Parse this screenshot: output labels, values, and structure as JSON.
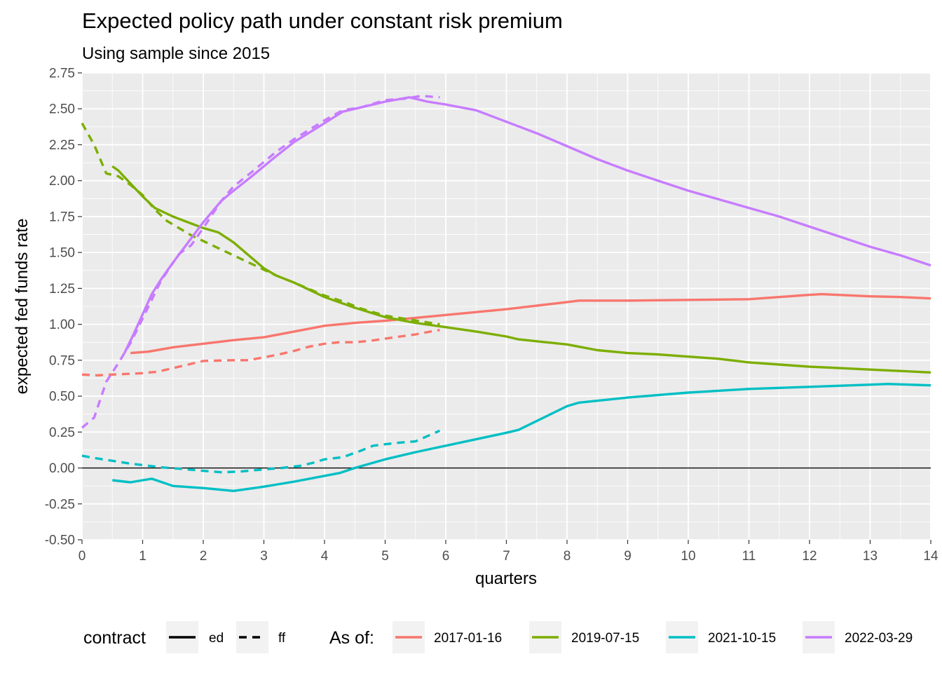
{
  "chart_data": {
    "type": "line",
    "title": "Expected policy path under constant risk premium",
    "subtitle": "Using sample since 2015",
    "xlabel": "quarters",
    "ylabel": "expected fed funds rate",
    "xlim": [
      0,
      14
    ],
    "ylim": [
      -0.5,
      2.75
    ],
    "x_ticks": [
      "0",
      "1",
      "2",
      "3",
      "4",
      "5",
      "6",
      "7",
      "8",
      "9",
      "10",
      "11",
      "12",
      "13",
      "14"
    ],
    "y_ticks": [
      "-0.50",
      "-0.25",
      "0.00",
      "0.25",
      "0.50",
      "0.75",
      "1.00",
      "1.25",
      "1.50",
      "1.75",
      "2.00",
      "2.25",
      "2.50",
      "2.75"
    ],
    "grid": true,
    "hline_zero": true,
    "colors": {
      "panel": "#ebebeb",
      "grid": "#ffffff",
      "2017-01-16": "#f8766d",
      "2019-07-15": "#7cae00",
      "2021-10-15": "#00bfc4",
      "2022-03-29": "#c77cff"
    },
    "legend": {
      "placement": "bottom",
      "linetype_title": "contract",
      "linetype_items": [
        "ed",
        "ff"
      ],
      "color_title": "As of:",
      "color_items": [
        "2017-01-16",
        "2019-07-15",
        "2021-10-15",
        "2022-03-29"
      ]
    },
    "series": [
      {
        "name": "2017-01-16",
        "contract": "ed",
        "x": [
          0.8,
          1.1,
          1.5,
          2.0,
          2.5,
          3.0,
          3.5,
          4.0,
          4.5,
          5.0,
          5.5,
          6.0,
          6.5,
          7.0,
          7.5,
          8.0,
          8.2,
          9.0,
          10.0,
          11.0,
          11.5,
          12.0,
          12.2,
          13.0,
          13.5,
          14.0
        ],
        "y": [
          0.8,
          0.81,
          0.84,
          0.865,
          0.89,
          0.91,
          0.95,
          0.99,
          1.01,
          1.025,
          1.045,
          1.065,
          1.085,
          1.105,
          1.13,
          1.155,
          1.165,
          1.165,
          1.17,
          1.175,
          1.19,
          1.205,
          1.21,
          1.195,
          1.19,
          1.18
        ]
      },
      {
        "name": "2017-01-16",
        "contract": "ff",
        "x": [
          0.0,
          0.25,
          0.5,
          0.75,
          1.0,
          1.25,
          1.5,
          1.75,
          2.0,
          2.5,
          2.75,
          3.0,
          3.25,
          3.5,
          3.75,
          4.0,
          4.25,
          4.5,
          4.75,
          5.0,
          5.25,
          5.5,
          5.75,
          5.9
        ],
        "y": [
          0.65,
          0.645,
          0.65,
          0.655,
          0.66,
          0.67,
          0.695,
          0.72,
          0.745,
          0.75,
          0.75,
          0.77,
          0.79,
          0.815,
          0.845,
          0.865,
          0.875,
          0.875,
          0.885,
          0.9,
          0.915,
          0.93,
          0.95,
          0.96
        ]
      },
      {
        "name": "2019-07-15",
        "contract": "ed",
        "x": [
          0.5,
          0.6,
          0.8,
          1.0,
          1.2,
          1.5,
          1.75,
          2.0,
          2.25,
          2.5,
          2.75,
          3.0,
          3.2,
          3.5,
          4.0,
          4.5,
          5.0,
          5.5,
          6.0,
          6.5,
          7.0,
          7.2,
          8.0,
          8.5,
          9.0,
          9.5,
          10.0,
          10.5,
          11.0,
          11.5,
          12.0,
          12.5,
          13.0,
          13.5,
          14.0
        ],
        "y": [
          2.1,
          2.07,
          1.98,
          1.89,
          1.81,
          1.75,
          1.71,
          1.67,
          1.64,
          1.57,
          1.48,
          1.39,
          1.34,
          1.29,
          1.19,
          1.115,
          1.05,
          1.01,
          0.98,
          0.95,
          0.915,
          0.895,
          0.86,
          0.82,
          0.8,
          0.79,
          0.775,
          0.76,
          0.735,
          0.72,
          0.705,
          0.695,
          0.685,
          0.675,
          0.665
        ]
      },
      {
        "name": "2019-07-15",
        "contract": "ff",
        "x": [
          0.0,
          0.2,
          0.4,
          0.6,
          0.8,
          1.0,
          1.2,
          1.4,
          1.6,
          1.8,
          2.0,
          2.2,
          2.4,
          2.6,
          2.8,
          3.0,
          3.2,
          3.5,
          4.0,
          4.3,
          4.6,
          5.0,
          5.3,
          5.6,
          5.9
        ],
        "y": [
          2.4,
          2.25,
          2.05,
          2.03,
          1.97,
          1.9,
          1.8,
          1.72,
          1.67,
          1.62,
          1.58,
          1.54,
          1.5,
          1.46,
          1.42,
          1.38,
          1.34,
          1.29,
          1.2,
          1.16,
          1.11,
          1.06,
          1.04,
          1.02,
          1.0
        ]
      },
      {
        "name": "2021-10-15",
        "contract": "ed",
        "x": [
          0.5,
          0.8,
          1.0,
          1.15,
          1.5,
          2.0,
          2.5,
          3.0,
          3.5,
          4.0,
          4.25,
          4.5,
          5.0,
          5.5,
          6.0,
          6.5,
          7.0,
          7.2,
          8.0,
          8.2,
          9.0,
          10.0,
          11.0,
          12.0,
          13.0,
          13.3,
          14.0
        ],
        "y": [
          -0.085,
          -0.1,
          -0.085,
          -0.075,
          -0.125,
          -0.14,
          -0.16,
          -0.13,
          -0.095,
          -0.055,
          -0.035,
          0.0,
          0.06,
          0.11,
          0.155,
          0.2,
          0.245,
          0.265,
          0.43,
          0.455,
          0.49,
          0.525,
          0.55,
          0.565,
          0.58,
          0.585,
          0.575
        ]
      },
      {
        "name": "2021-10-15",
        "contract": "ff",
        "x": [
          0.0,
          0.2,
          0.5,
          0.8,
          1.0,
          1.3,
          1.6,
          2.0,
          2.3,
          2.6,
          3.0,
          3.3,
          3.6,
          3.8,
          4.0,
          4.3,
          4.6,
          4.8,
          5.0,
          5.2,
          5.5,
          5.9
        ],
        "y": [
          0.085,
          0.07,
          0.05,
          0.03,
          0.02,
          0.005,
          -0.005,
          -0.02,
          -0.03,
          -0.025,
          -0.01,
          0.0,
          0.015,
          0.035,
          0.06,
          0.075,
          0.12,
          0.155,
          0.165,
          0.175,
          0.185,
          0.26
        ]
      },
      {
        "name": "2022-03-29",
        "contract": "ed",
        "x": [
          0.7,
          0.85,
          1.0,
          1.15,
          1.3,
          1.5,
          1.75,
          2.0,
          2.3,
          2.5,
          2.8,
          3.0,
          3.2,
          3.5,
          4.0,
          4.3,
          4.6,
          5.0,
          5.4,
          5.7,
          6.0,
          6.5,
          7.0,
          7.5,
          8.0,
          8.5,
          9.0,
          9.5,
          10.0,
          10.5,
          11.0,
          11.5,
          12.0,
          12.5,
          13.0,
          13.5,
          14.0
        ],
        "y": [
          0.8,
          0.93,
          1.07,
          1.21,
          1.31,
          1.43,
          1.57,
          1.71,
          1.86,
          1.93,
          2.03,
          2.1,
          2.17,
          2.27,
          2.4,
          2.48,
          2.51,
          2.55,
          2.58,
          2.55,
          2.53,
          2.49,
          2.41,
          2.33,
          2.24,
          2.15,
          2.07,
          2.0,
          1.93,
          1.87,
          1.81,
          1.75,
          1.68,
          1.61,
          1.54,
          1.48,
          1.41
        ]
      },
      {
        "name": "2022-03-29",
        "contract": "ff",
        "x": [
          0.0,
          0.2,
          0.4,
          0.6,
          0.8,
          1.0,
          1.3,
          1.6,
          1.8,
          2.0,
          2.3,
          2.5,
          2.8,
          3.0,
          3.2,
          3.5,
          4.0,
          4.3,
          4.6,
          5.0,
          5.3,
          5.6,
          5.9
        ],
        "y": [
          0.28,
          0.35,
          0.6,
          0.73,
          0.87,
          1.04,
          1.3,
          1.49,
          1.55,
          1.67,
          1.86,
          1.96,
          2.06,
          2.13,
          2.2,
          2.29,
          2.42,
          2.49,
          2.51,
          2.56,
          2.57,
          2.59,
          2.58
        ]
      }
    ]
  }
}
